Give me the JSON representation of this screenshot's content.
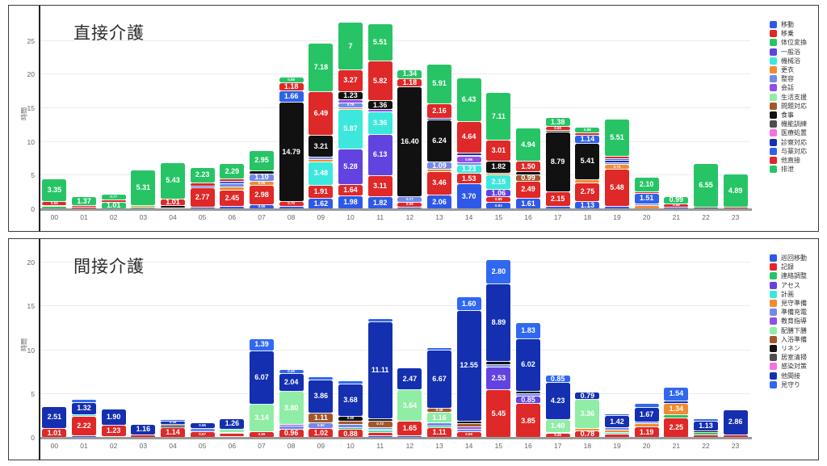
{
  "chart_data": [
    {
      "type": "bar",
      "stacked": true,
      "title": "直接介護",
      "ylabel": "時間",
      "yticks": [
        0,
        5,
        10,
        15,
        20,
        25
      ],
      "ylim": [
        0,
        28.3
      ],
      "grid": true,
      "legend_position": "right",
      "categories": [
        "00",
        "01",
        "02",
        "03",
        "04",
        "05",
        "06",
        "07",
        "08",
        "09",
        "10",
        "11",
        "12",
        "13",
        "14",
        "15",
        "16",
        "17",
        "18",
        "19",
        "20",
        "21",
        "22",
        "23"
      ],
      "series_labels": [
        "移動",
        "移乗",
        "体位変換",
        "一般浴",
        "機械浴",
        "更衣",
        "整容",
        "会話",
        "生活支援",
        "問題対応",
        "食事",
        "機能訓練",
        "医療処置",
        "診察対応",
        "与薬対応",
        "他直接",
        "排泄"
      ],
      "series_colors": [
        "#2e59e8",
        "#df2828",
        "#27c466",
        "#6243e0",
        "#3ce8dc",
        "#f28b30",
        "#7189ec",
        "#8f4fe8",
        "#90eda5",
        "#a2572a",
        "#111111",
        "#4d4d4d",
        "#f470df",
        "#1430b0",
        "#2f62ea",
        "#df2828",
        "#27c466"
      ],
      "bars": [
        [
          [
            2,
            0.35
          ],
          [
            5,
            0.15
          ],
          [
            15,
            0.55
          ],
          [
            16,
            3.35
          ]
        ],
        [
          [
            1,
            0.2
          ],
          [
            15,
            0.25
          ],
          [
            16,
            1.37
          ]
        ],
        [
          [
            2,
            1.01
          ],
          [
            15,
            0.35
          ],
          [
            16,
            0.77
          ]
        ],
        [
          [
            2,
            0.2
          ],
          [
            5,
            0.3
          ],
          [
            16,
            5.31
          ]
        ],
        [
          [
            1,
            0.15
          ],
          [
            10,
            0.3
          ],
          [
            15,
            1.01
          ],
          [
            16,
            5.43
          ]
        ],
        [
          [
            0,
            0.3
          ],
          [
            1,
            2.77
          ],
          [
            14,
            0.35
          ],
          [
            15,
            0.45
          ],
          [
            16,
            2.23
          ]
        ],
        [
          [
            0,
            0.35
          ],
          [
            1,
            2.45
          ],
          [
            5,
            0.45
          ],
          [
            6,
            0.5
          ],
          [
            14,
            0.3
          ],
          [
            15,
            0.35
          ],
          [
            16,
            2.29
          ]
        ],
        [
          [
            0,
            0.55
          ],
          [
            1,
            2.98
          ],
          [
            5,
            0.55
          ],
          [
            6,
            1.1
          ],
          [
            10,
            0.5
          ],
          [
            16,
            2.95
          ]
        ],
        [
          [
            0,
            0.35
          ],
          [
            1,
            0.7
          ],
          [
            10,
            14.79
          ],
          [
            14,
            1.66
          ],
          [
            15,
            1.18
          ],
          [
            16,
            0.85
          ]
        ],
        [
          [
            0,
            1.62
          ],
          [
            1,
            1.91
          ],
          [
            4,
            3.48
          ],
          [
            5,
            0.3
          ],
          [
            6,
            0.35
          ],
          [
            10,
            3.21
          ],
          [
            15,
            6.49
          ],
          [
            16,
            7.18
          ]
        ],
        [
          [
            0,
            1.98
          ],
          [
            1,
            1.64
          ],
          [
            3,
            5.28
          ],
          [
            4,
            5.87
          ],
          [
            5,
            0.2
          ],
          [
            6,
            0.79
          ],
          [
            7,
            0.4
          ],
          [
            10,
            1.23
          ],
          [
            15,
            3.27
          ],
          [
            16,
            7
          ]
        ],
        [
          [
            0,
            1.82
          ],
          [
            1,
            3.11
          ],
          [
            3,
            6.13
          ],
          [
            4,
            3.36
          ],
          [
            7,
            0.3
          ],
          [
            10,
            1.36
          ],
          [
            15,
            5.82
          ],
          [
            16,
            5.51
          ]
        ],
        [
          [
            0,
            0.3
          ],
          [
            1,
            0.69
          ],
          [
            6,
            0.77
          ],
          [
            10,
            16.4
          ],
          [
            15,
            1.18
          ],
          [
            16,
            1.34
          ]
        ],
        [
          [
            0,
            2.06
          ],
          [
            1,
            3.46
          ],
          [
            5,
            0.3
          ],
          [
            6,
            1.09
          ],
          [
            10,
            6.24
          ],
          [
            13,
            0.3
          ],
          [
            15,
            2.16
          ],
          [
            16,
            5.91
          ]
        ],
        [
          [
            0,
            3.7
          ],
          [
            1,
            1.53
          ],
          [
            4,
            1.23
          ],
          [
            6,
            0.35
          ],
          [
            7,
            0.95
          ],
          [
            12,
            0.2
          ],
          [
            13,
            0.38
          ],
          [
            15,
            4.64
          ],
          [
            16,
            6.43
          ]
        ],
        [
          [
            0,
            0.93
          ],
          [
            1,
            0.88
          ],
          [
            3,
            1.06
          ],
          [
            4,
            2.15
          ],
          [
            5,
            0.3
          ],
          [
            10,
            1.82
          ],
          [
            15,
            3.01
          ],
          [
            16,
            7.11
          ]
        ],
        [
          [
            0,
            1.61
          ],
          [
            1,
            2.49
          ],
          [
            9,
            0.99
          ],
          [
            10,
            0.45
          ],
          [
            15,
            1.5
          ],
          [
            16,
            4.94
          ]
        ],
        [
          [
            0,
            0.4
          ],
          [
            1,
            2.15
          ],
          [
            10,
            8.79
          ],
          [
            11,
            0.25
          ],
          [
            15,
            0.6
          ],
          [
            16,
            1.38
          ]
        ],
        [
          [
            0,
            1.13
          ],
          [
            1,
            2.75
          ],
          [
            5,
            0.45
          ],
          [
            10,
            5.41
          ],
          [
            14,
            1.14
          ],
          [
            15,
            0.35
          ],
          [
            16,
            0.88
          ]
        ],
        [
          [
            0,
            0.35
          ],
          [
            1,
            5.48
          ],
          [
            5,
            0.75
          ],
          [
            6,
            0.3
          ],
          [
            13,
            0.3
          ],
          [
            14,
            0.3
          ],
          [
            15,
            0.3
          ],
          [
            16,
            5.51
          ]
        ],
        [
          [
            5,
            0.5
          ],
          [
            6,
            0.25
          ],
          [
            14,
            1.51
          ],
          [
            15,
            0.3
          ],
          [
            16,
            2.1
          ]
        ],
        [
          [
            0,
            0.2
          ],
          [
            15,
            0.58
          ],
          [
            16,
            0.99
          ]
        ],
        [
          [
            11,
            0.2
          ],
          [
            16,
            6.55
          ]
        ],
        [
          [
            15,
            0.25
          ],
          [
            16,
            4.89
          ]
        ]
      ]
    },
    {
      "type": "bar",
      "stacked": true,
      "title": "間接介護",
      "ylabel": "時間",
      "yticks": [
        0,
        5,
        10,
        15,
        20
      ],
      "ylim": [
        0,
        21.2
      ],
      "grid": true,
      "legend_position": "right",
      "categories": [
        "00",
        "01",
        "02",
        "03",
        "04",
        "05",
        "06",
        "07",
        "08",
        "09",
        "10",
        "11",
        "12",
        "13",
        "14",
        "15",
        "16",
        "17",
        "18",
        "19",
        "20",
        "21",
        "22",
        "23"
      ],
      "series_labels": [
        "巡回移動",
        "記録",
        "連絡調整",
        "アセス",
        "計画",
        "見守準備",
        "準備充電",
        "教育指導",
        "配膳下膳",
        "入浴準備",
        "リネン",
        "居室清掃",
        "感染対策",
        "他間接",
        "見守り"
      ],
      "series_colors": [
        "#2e59e8",
        "#df2828",
        "#27c466",
        "#6243e0",
        "#3ce8dc",
        "#f28b30",
        "#7189ec",
        "#8f4fe8",
        "#90eda5",
        "#a2572a",
        "#111111",
        "#4d4d4d",
        "#f470df",
        "#1430b0",
        "#3168f0"
      ],
      "bars": [
        [
          [
            1,
            1.01
          ],
          [
            13,
            2.51
          ]
        ],
        [
          [
            0,
            0.15
          ],
          [
            1,
            2.22
          ],
          [
            4,
            0.25
          ],
          [
            13,
            1.32
          ],
          [
            14,
            0.35
          ]
        ],
        [
          [
            0,
            0.12
          ],
          [
            1,
            1.23
          ],
          [
            13,
            1.9
          ]
        ],
        [
          [
            1,
            0.3
          ],
          [
            13,
            1.16
          ]
        ],
        [
          [
            1,
            1.14
          ],
          [
            10,
            0.15
          ],
          [
            11,
            0.15
          ],
          [
            13,
            0.45
          ],
          [
            14,
            0.15
          ]
        ],
        [
          [
            1,
            0.67
          ],
          [
            6,
            0.35
          ],
          [
            13,
            0.65
          ]
        ],
        [
          [
            0,
            0.1
          ],
          [
            1,
            0.35
          ],
          [
            2,
            0.15
          ],
          [
            8,
            0.3
          ],
          [
            13,
            1.26
          ]
        ],
        [
          [
            1,
            0.66
          ],
          [
            8,
            3.14
          ],
          [
            13,
            6.07
          ],
          [
            14,
            1.39
          ]
        ],
        [
          [
            1,
            0.96
          ],
          [
            6,
            0.3
          ],
          [
            7,
            0.2
          ],
          [
            8,
            3.8
          ],
          [
            13,
            2.04
          ],
          [
            14,
            0.45
          ]
        ],
        [
          [
            1,
            1.02
          ],
          [
            6,
            0.6
          ],
          [
            9,
            1.11
          ],
          [
            13,
            3.86
          ],
          [
            14,
            0.35
          ]
        ],
        [
          [
            1,
            0.88
          ],
          [
            2,
            0.25
          ],
          [
            6,
            0.35
          ],
          [
            9,
            0.35
          ],
          [
            10,
            0.6
          ],
          [
            13,
            3.68
          ],
          [
            14,
            0.3
          ]
        ],
        [
          [
            0,
            0.2
          ],
          [
            1,
            0.35
          ],
          [
            2,
            0.15
          ],
          [
            4,
            0.2
          ],
          [
            6,
            0.25
          ],
          [
            9,
            0.72
          ],
          [
            10,
            0.25
          ],
          [
            13,
            11.11
          ],
          [
            14,
            0.33
          ]
        ],
        [
          [
            0,
            0.15
          ],
          [
            1,
            1.65
          ],
          [
            8,
            3.64
          ],
          [
            13,
            2.47
          ]
        ],
        [
          [
            1,
            1.11
          ],
          [
            2,
            0.2
          ],
          [
            6,
            0.35
          ],
          [
            8,
            1.16
          ],
          [
            9,
            0.46
          ],
          [
            13,
            6.67
          ],
          [
            14,
            0.3
          ]
        ],
        [
          [
            1,
            0.69
          ],
          [
            6,
            0.25
          ],
          [
            7,
            0.3
          ],
          [
            9,
            0.35
          ],
          [
            10,
            0.3
          ],
          [
            13,
            12.55
          ],
          [
            14,
            1.6
          ]
        ],
        [
          [
            1,
            5.45
          ],
          [
            3,
            2.53
          ],
          [
            6,
            0.3
          ],
          [
            10,
            0.35
          ],
          [
            13,
            8.89
          ],
          [
            14,
            2.8
          ]
        ],
        [
          [
            1,
            3.85
          ],
          [
            3,
            0.85
          ],
          [
            6,
            0.3
          ],
          [
            10,
            0.25
          ],
          [
            13,
            6.02
          ],
          [
            14,
            1.83
          ]
        ],
        [
          [
            1,
            0.45
          ],
          [
            2,
            0.15
          ],
          [
            8,
            1.4
          ],
          [
            13,
            4.23
          ],
          [
            14,
            0.85
          ]
        ],
        [
          [
            1,
            0.78
          ],
          [
            5,
            0.2
          ],
          [
            8,
            3.36
          ],
          [
            13,
            0.79
          ]
        ],
        [
          [
            1,
            0.35
          ],
          [
            4,
            0.2
          ],
          [
            5,
            0.3
          ],
          [
            6,
            0.22
          ],
          [
            13,
            1.42
          ],
          [
            14,
            0.2
          ]
        ],
        [
          [
            1,
            1.19
          ],
          [
            5,
            0.37
          ],
          [
            6,
            0.22
          ],
          [
            13,
            1.67
          ],
          [
            14,
            0.4
          ]
        ],
        [
          [
            1,
            2.25
          ],
          [
            2,
            0.3
          ],
          [
            5,
            1.34
          ],
          [
            13,
            0.3
          ],
          [
            14,
            1.54
          ]
        ],
        [
          [
            1,
            0.25
          ],
          [
            2,
            0.35
          ],
          [
            10,
            0.15
          ],
          [
            13,
            1.13
          ],
          [
            14,
            0.2
          ]
        ],
        [
          [
            1,
            0.3
          ],
          [
            13,
            2.86
          ]
        ]
      ]
    }
  ]
}
